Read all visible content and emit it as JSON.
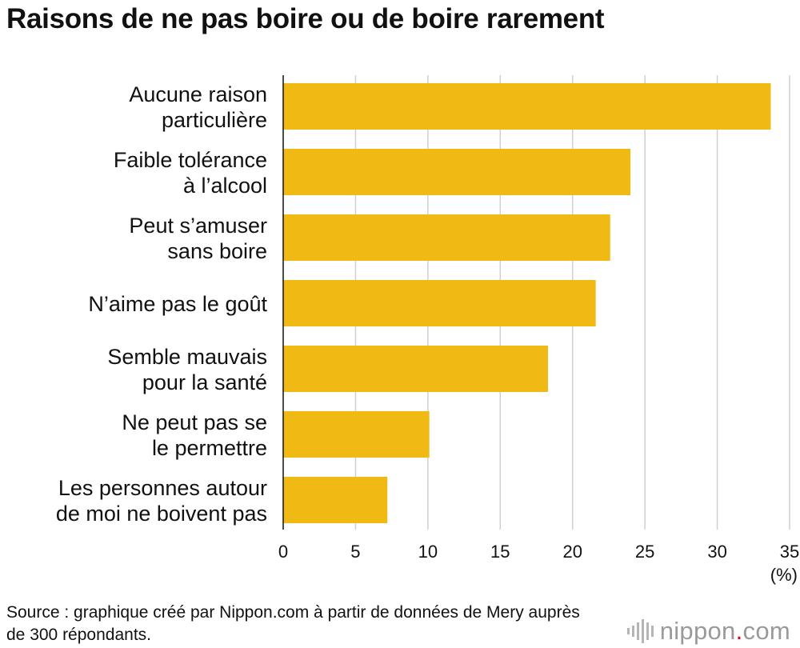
{
  "chart_data": {
    "type": "bar",
    "orientation": "horizontal",
    "title": "Raisons de ne pas boire ou de boire rarement",
    "categories": [
      [
        "Aucune raison",
        "particulière"
      ],
      [
        "Faible tolérance",
        "à l’alcool"
      ],
      [
        "Peut s’amuser",
        "sans boire"
      ],
      [
        "N’aime pas le goût"
      ],
      [
        "Semble mauvais",
        "pour la santé"
      ],
      [
        "Ne peut pas se",
        "le permettre"
      ],
      [
        "Les personnes autour",
        "de moi ne boivent pas"
      ]
    ],
    "values": [
      33.7,
      24.0,
      22.6,
      21.6,
      18.3,
      10.1,
      7.2
    ],
    "xlim": [
      0,
      35
    ],
    "xticks": [
      "0",
      "5",
      "10",
      "15",
      "20",
      "25",
      "30",
      "35"
    ],
    "xunit": "(%)",
    "grid": true,
    "bar_color": "#f0b913",
    "grid_color": "#d0d0d0"
  },
  "source": "Source : graphique créé par Nippon.com à partir de données de Mery auprès de 300 répondants.",
  "logo": {
    "name": "nippon",
    "dot": ".",
    "tld": "com",
    "icon": "nippon-bars-icon"
  }
}
